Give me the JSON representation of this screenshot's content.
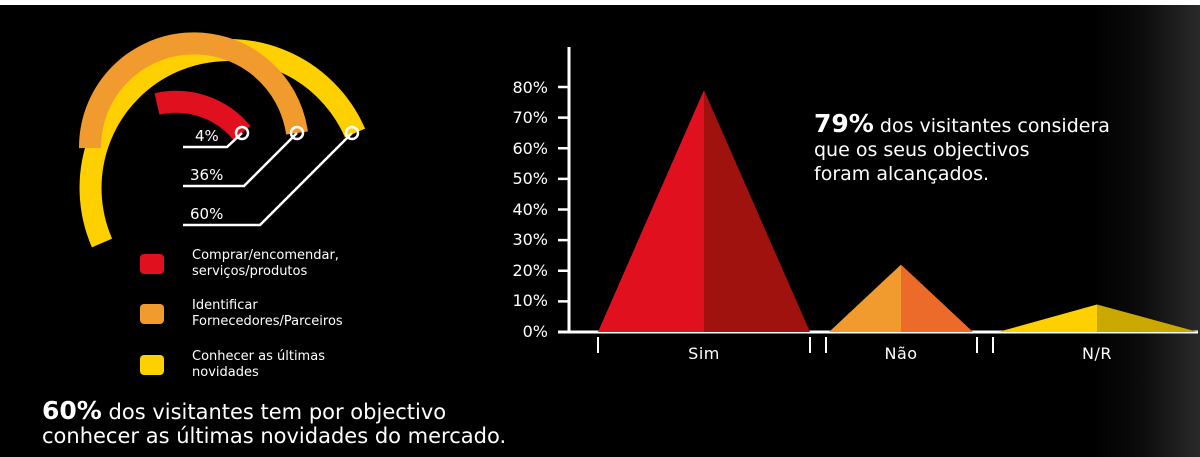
{
  "colors": {
    "red": "#e0101e",
    "red_dark": "#a0120e",
    "orange": "#f19a2e",
    "orange_dark": "#ec6a2a",
    "yellow": "#fed000",
    "yellow_dark": "#c9a800",
    "background": "#000000",
    "text": "#ffffff"
  },
  "left_chart": {
    "type": "radial-bar",
    "labels": [
      "4%",
      "36%",
      "60%"
    ],
    "legend": [
      {
        "label": "Comprar/encomendar,\nserviços/produtos",
        "color": "#e0101e"
      },
      {
        "label": "Identificar\nFornecedores/Parceiros",
        "color": "#f19a2e"
      },
      {
        "label": "Conhecer as últimas\nnovidades",
        "color": "#fed000"
      }
    ]
  },
  "bottom_note": {
    "bold": "60%",
    "line1": " dos visitantes tem por objectivo",
    "line2": "conhecer as últimas novidades do mercado."
  },
  "right_note": {
    "bold": "79%",
    "line1": " dos visitantes considera",
    "line2": "que os seus objectivos",
    "line3": "foram alcançados."
  },
  "chart_data": [
    {
      "type": "bar",
      "title": "",
      "categories": [
        "Comprar/encomendar, serviços/produtos",
        "Identificar Fornecedores/Parceiros",
        "Conhecer as últimas novidades"
      ],
      "values": [
        4,
        36,
        60
      ],
      "unit": "%",
      "value_labels": [
        "4%",
        "36%",
        "60%"
      ]
    },
    {
      "type": "bar",
      "title": "",
      "categories": [
        "Sim",
        "Não",
        "N/R"
      ],
      "values": [
        79,
        22,
        9
      ],
      "colors": [
        "#e0101e",
        "#f19a2e",
        "#fed000"
      ],
      "ylim": [
        0,
        80
      ],
      "yticks": [
        "0%",
        "10%",
        "20%",
        "30%",
        "40%",
        "50%",
        "60%",
        "70%",
        "80%"
      ],
      "xlabel": "",
      "ylabel": "",
      "grid": false
    }
  ]
}
